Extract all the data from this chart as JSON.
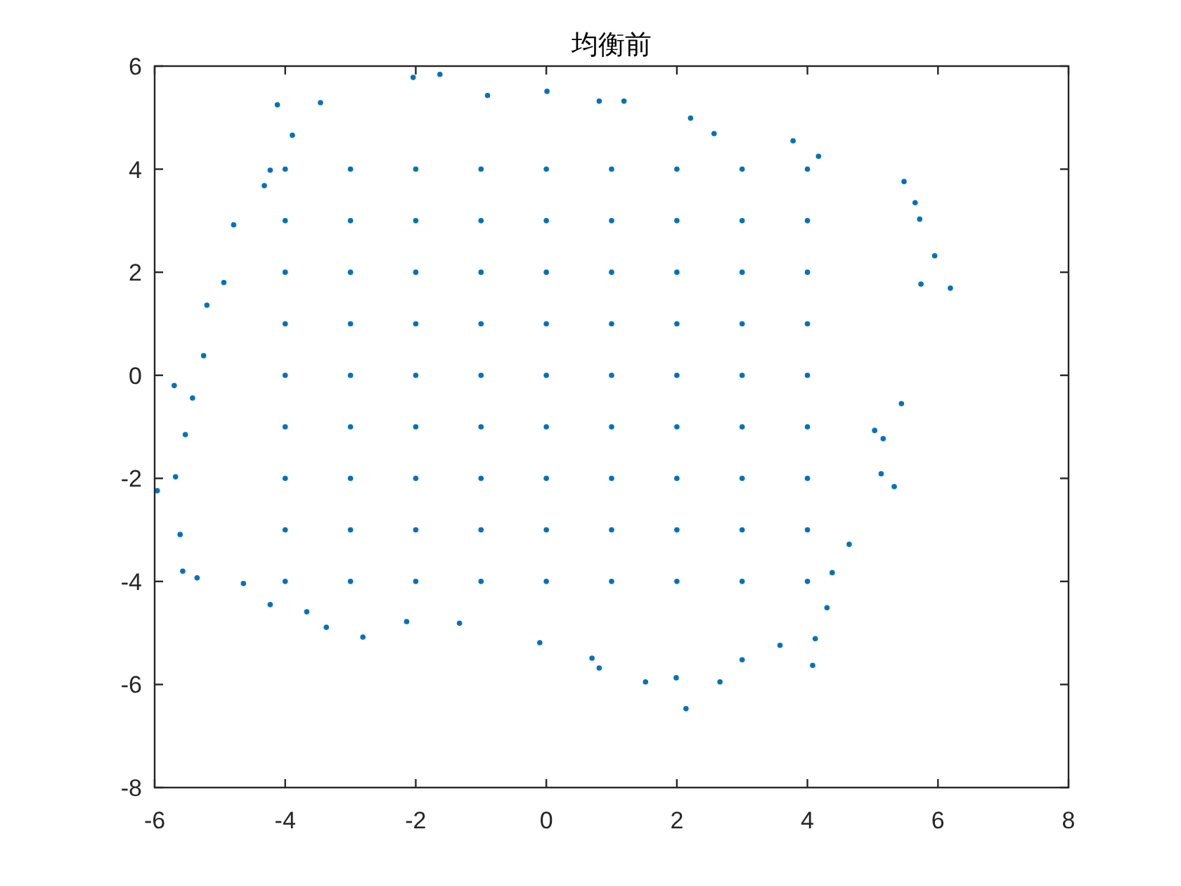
{
  "chart_data": {
    "type": "scatter",
    "title": "均衡前",
    "series": [
      {
        "color": "#0072bd",
        "x": [
          -2.04,
          -1.63,
          -4.12,
          -3.46,
          0.01,
          -0.9,
          0.81,
          1.19,
          2.21,
          2.57,
          3.78,
          4.17,
          5.48,
          5.65,
          5.72,
          5.95,
          6.19,
          5.74,
          5.44,
          5.03,
          5.33,
          5.13,
          5.16,
          4.64,
          4.38,
          4.3,
          4.12,
          4.08,
          3.58,
          2.14,
          2.66,
          1.99,
          1.52,
          0.81,
          0.7,
          -0.1,
          -1.33,
          3.0,
          -2.81,
          -3.37,
          -3.67,
          -4.23,
          -4.64,
          -5.57,
          -5.35,
          -5.96,
          -5.68,
          -5.53,
          -5.61,
          -2.14,
          -5.7,
          -5.25,
          -5.2,
          -4.79,
          -4.94,
          -4.32,
          -4.23,
          -3.89,
          -5.42,
          -4,
          -4,
          -4,
          -4,
          -4,
          -4,
          -4,
          -4,
          -4,
          -3,
          -3,
          -3,
          -3,
          -3,
          -3,
          -3,
          -3,
          -3,
          -2,
          -2,
          -2,
          -2,
          -2,
          -2,
          -2,
          -2,
          -2,
          -1,
          -1,
          -1,
          -1,
          -1,
          -1,
          -1,
          -1,
          -1,
          0,
          0,
          0,
          0,
          0,
          0,
          0,
          0,
          0,
          1,
          1,
          1,
          1,
          1,
          1,
          1,
          1,
          1,
          2,
          2,
          2,
          2,
          2,
          2,
          2,
          2,
          2,
          3,
          3,
          3,
          3,
          3,
          3,
          3,
          3,
          3,
          4,
          4,
          4,
          4,
          4,
          4,
          4,
          4,
          4
        ],
        "values": [
          5.78,
          5.84,
          5.25,
          5.29,
          5.51,
          5.43,
          5.32,
          5.32,
          4.99,
          4.69,
          4.55,
          4.25,
          3.76,
          3.35,
          3.03,
          2.32,
          1.69,
          1.77,
          -0.55,
          -1.07,
          -2.16,
          -1.91,
          -1.23,
          -3.28,
          -3.83,
          -4.51,
          -5.11,
          -5.63,
          -5.24,
          -6.47,
          -5.95,
          -5.87,
          -5.95,
          -5.68,
          -5.49,
          -5.19,
          -4.81,
          -5.52,
          -5.08,
          -4.89,
          -4.59,
          -4.45,
          -4.04,
          -3.8,
          -3.93,
          -2.24,
          -1.97,
          -1.15,
          -3.09,
          -4.78,
          -0.2,
          0.38,
          1.36,
          2.92,
          1.8,
          3.68,
          3.98,
          4.66,
          -0.44,
          -4,
          -3,
          -2,
          -1,
          0,
          1,
          2,
          3,
          4,
          -4,
          -3,
          -2,
          -1,
          0,
          1,
          2,
          3,
          4,
          -4,
          -3,
          -2,
          -1,
          0,
          1,
          2,
          3,
          4,
          -4,
          -3,
          -2,
          -1,
          0,
          1,
          2,
          3,
          4,
          -4,
          -3,
          -2,
          -1,
          0,
          1,
          2,
          3,
          4,
          -4,
          -3,
          -2,
          -1,
          0,
          1,
          2,
          3,
          4,
          -4,
          -3,
          -2,
          -1,
          0,
          1,
          2,
          3,
          4,
          -4,
          -3,
          -2,
          -1,
          0,
          1,
          2,
          3,
          4,
          -4,
          -3,
          -2,
          -1,
          0,
          1,
          2,
          3,
          4
        ]
      }
    ],
    "xlim": [
      -6,
      8
    ],
    "ylim": [
      -8,
      6
    ],
    "xticks": [
      -6,
      -4,
      -2,
      0,
      2,
      4,
      6,
      8
    ],
    "yticks": [
      -8,
      -6,
      -4,
      -2,
      0,
      2,
      4,
      6
    ],
    "grid": false,
    "marker": "circle"
  }
}
